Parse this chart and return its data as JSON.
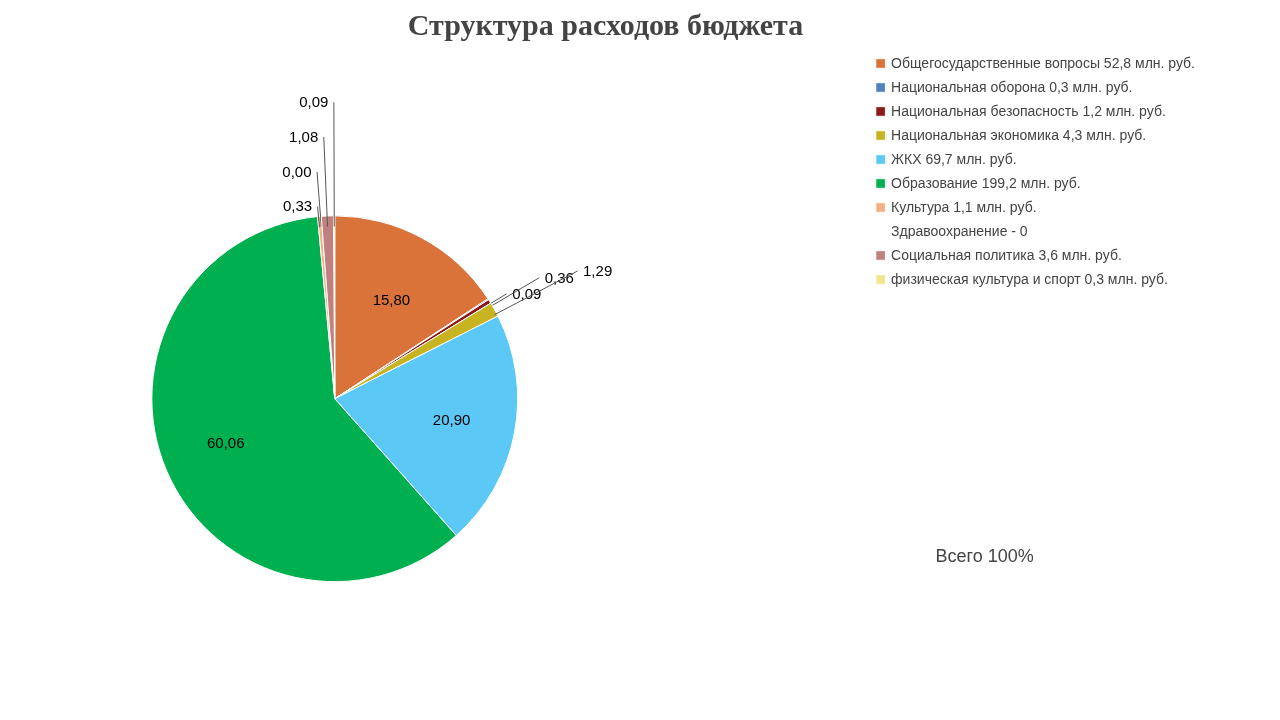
{
  "chart_data": {
    "type": "pie",
    "title": "Структура расходов бюджета",
    "categories": [
      "Общегосударственные вопросы 52,8 млн. руб.",
      "Национальная оборона 0,3 млн. руб.",
      "Национальная безопасность 1,2 млн. руб.",
      "Национальная экономика 4,3 млн. руб.",
      "ЖКХ 69,7 млн. руб.",
      "Образование 199,2 млн. руб.",
      "Культура 1,1 млн. руб.",
      "Здравоохранение - 0",
      "Социальная политика 3,6 млн. руб.",
      "физическая культура и спорт 0,3 млн. руб."
    ],
    "values": [
      15.8,
      0.09,
      0.36,
      1.29,
      20.9,
      60.06,
      0.33,
      0.0,
      1.08,
      0.09
    ],
    "value_labels": [
      "15,80",
      "0,09",
      "0,36",
      "1,29",
      "20,90",
      "60,06",
      "0,33",
      "0,00",
      "1,08",
      "0,09"
    ],
    "colors": [
      "#d9733a",
      "#4f81bd",
      "#8b1a1a",
      "#c8b420",
      "#5bc8f5",
      "#00b050",
      "#f4b183",
      "#a5b4d8",
      "#c0807f",
      "#f0e68c"
    ],
    "legend": "right",
    "annotations": [
      "Всего 100%"
    ]
  }
}
